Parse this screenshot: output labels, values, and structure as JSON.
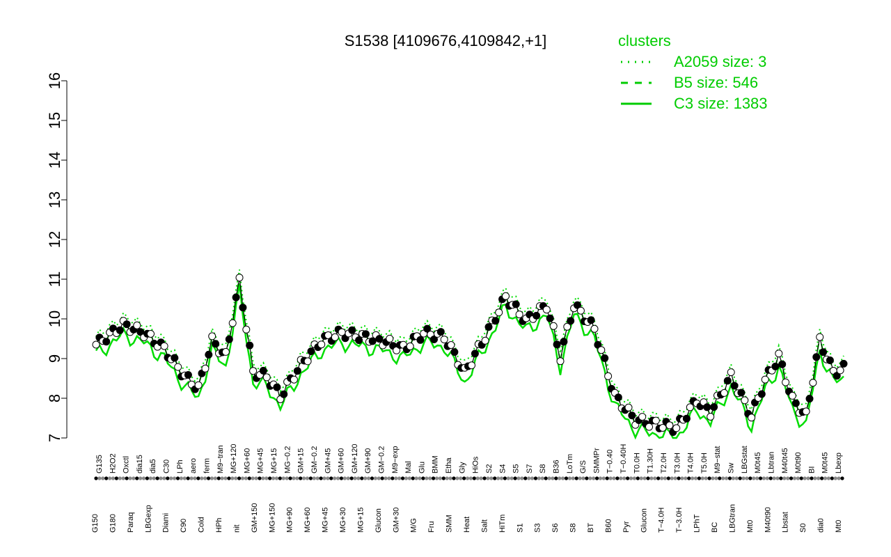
{
  "chart_data": {
    "type": "line",
    "title": "S1538 [4109676,4109842,+1]",
    "ylim": [
      7,
      16
    ],
    "y_ticks": [
      7,
      8,
      9,
      10,
      11,
      12,
      13,
      14,
      15,
      16
    ],
    "grid": false,
    "legend_position": "top-right",
    "legend": {
      "title": "clusters",
      "entries": [
        {
          "label": "A2059 size: 3",
          "style": "dotted"
        },
        {
          "label": "B5 size: 546",
          "style": "dashed"
        },
        {
          "label": "C3 size: 1383",
          "style": "solid"
        }
      ]
    },
    "colors": {
      "line": "#00dd00",
      "points": "#000000",
      "legend": "#00cc00"
    },
    "categories_upper": [
      "G135",
      "H2O2",
      "Oxctl",
      "dia15",
      "dia5",
      "C30",
      "LPh",
      "aero",
      "ferm",
      "M9−tran",
      "MG+120",
      "MG+60",
      "MG+45",
      "MG+15",
      "MG−0.2",
      "GM+15",
      "GM−0.2",
      "GM+45",
      "GM+60",
      "GM+120",
      "GM+90",
      "GM−0.2",
      "M9−exp",
      "Mal",
      "Glu",
      "BMM",
      "Etha",
      "Gly",
      "HiOs",
      "S2",
      "S4",
      "S5",
      "S7",
      "S8",
      "B36",
      "LoTm",
      "G/S",
      "SMMPr",
      "T−0.40",
      "T−0.40H",
      "T0.0H",
      "T1.30H",
      "T2.0H",
      "T3.0H",
      "T4.0H",
      "T5.0H",
      "M9−stat",
      "Sw",
      "LBGstat",
      "M0t45",
      "Lbtran",
      "M40t45",
      "M0t90",
      "BI",
      "M0t45",
      "Lbexp"
    ],
    "categories_lower": [
      "G150",
      "G180",
      "Paraq",
      "LBGexp",
      "Diami",
      "C90",
      "Cold",
      "HPh",
      "nit",
      "GM+150",
      "MG+150",
      "MG+90",
      "MG+60",
      "MG+45",
      "MG+30",
      "MG+15",
      "Glucon",
      "GM+30",
      "M/G",
      "Fru",
      "SMM",
      "Heat",
      "Salt",
      "HiTm",
      "S1",
      "S3",
      "S6",
      "S8",
      "BT",
      "B60",
      "Pyr",
      "Glucon",
      "T−4.0H",
      "T−3.0H",
      "LPhT",
      "BC",
      "LBGtran",
      "Mt0",
      "M40t90",
      "Lbstat",
      "S0",
      "dia0",
      "Mt0"
    ],
    "x": [
      0,
      1,
      2,
      3,
      4,
      5,
      6,
      7,
      8,
      9,
      10,
      11,
      12,
      13,
      14,
      15,
      16,
      17,
      18,
      19,
      20,
      21,
      22,
      23,
      24,
      25,
      26,
      27,
      28,
      29,
      30,
      31,
      32,
      33,
      34,
      35,
      36,
      37,
      38,
      39,
      40,
      41,
      42,
      43,
      44,
      45,
      46,
      47,
      48,
      49,
      50,
      51,
      52,
      53,
      54,
      55,
      56,
      57,
      58,
      59,
      60,
      61,
      62,
      63,
      64,
      65,
      66,
      67,
      68,
      69,
      70,
      71,
      72,
      73,
      74,
      75,
      76,
      77,
      78,
      79,
      80,
      81,
      82,
      83,
      84,
      85,
      86,
      87,
      88,
      89,
      90,
      91,
      92,
      93,
      94,
      95,
      96,
      97,
      98,
      99,
      100,
      101,
      102,
      103,
      104,
      105,
      106,
      107,
      108,
      109,
      110,
      111,
      112,
      113,
      114,
      115,
      116,
      117,
      118,
      119,
      120,
      121,
      122,
      123,
      124,
      125,
      126,
      127,
      128,
      129,
      130,
      131,
      132,
      133,
      134,
      135,
      136,
      137,
      138,
      139,
      140,
      141,
      142,
      143,
      144,
      145,
      146,
      147,
      148,
      149,
      150,
      151,
      152,
      153,
      154,
      155,
      156,
      157,
      158,
      159,
      160,
      161,
      162,
      163,
      164,
      165,
      166,
      167,
      168,
      169,
      170,
      171,
      172,
      173,
      174,
      175,
      176,
      177,
      178,
      179,
      180,
      181,
      182,
      183,
      184,
      185,
      186,
      187,
      188,
      189,
      190,
      191,
      192,
      193,
      194,
      195,
      196,
      197,
      198,
      199,
      200,
      201,
      202,
      203,
      204,
      205,
      206,
      207,
      208,
      209,
      210,
      211,
      212,
      213,
      214,
      215,
      216,
      217,
      218,
      219,
      220,
      221,
      222,
      223,
      224,
      225,
      226,
      227,
      228,
      229,
      230,
      231,
      232,
      233,
      234,
      235,
      236,
      237,
      238,
      239,
      240,
      241,
      242,
      243,
      244,
      245,
      246,
      247,
      248,
      249,
      250,
      251,
      252,
      253,
      254,
      255,
      256,
      257,
      258,
      259,
      260,
      261,
      262,
      263,
      264,
      265,
      266,
      267,
      268,
      269,
      270,
      271,
      272,
      273,
      274,
      275,
      276,
      277,
      278,
      279,
      280,
      281,
      282,
      283,
      284,
      285,
      286,
      287,
      288,
      289,
      290,
      291,
      292,
      293,
      294,
      295,
      296,
      297,
      298,
      299,
      300,
      301,
      302,
      303,
      304,
      305,
      306,
      307,
      308,
      309,
      310,
      311,
      312,
      313,
      314,
      315,
      316,
      317,
      318,
      319,
      320,
      321,
      322,
      323,
      324,
      325,
      326,
      327,
      328,
      329,
      330,
      331,
      332,
      333,
      334,
      335,
      336,
      337,
      338,
      339,
      340,
      341,
      342,
      343,
      344,
      345,
      346,
      347,
      348,
      349,
      350,
      351,
      352,
      353,
      354,
      355,
      356,
      357,
      358,
      359,
      360,
      361,
      362,
      363,
      364,
      365,
      366,
      367,
      368,
      369,
      370,
      371,
      372,
      373,
      374,
      375,
      376,
      377,
      378,
      379,
      380,
      381,
      382,
      383,
      384,
      385,
      386,
      387,
      388,
      389,
      390,
      391,
      392,
      393,
      394,
      395,
      396,
      397,
      398,
      399,
      400,
      401,
      402,
      403,
      404,
      405,
      406,
      407,
      408,
      409,
      410,
      411,
      412,
      413,
      414,
      415,
      416,
      417,
      418,
      419,
      420,
      421,
      422,
      423,
      424,
      425,
      426,
      427,
      428,
      429,
      430,
      431,
      432,
      433,
      434,
      435,
      436,
      437,
      438,
      439,
      440,
      441,
      442,
      443,
      444,
      445,
      446,
      447,
      448,
      449,
      450,
      451,
      452,
      453,
      454,
      455,
      456,
      457,
      458,
      459,
      460,
      461,
      462,
      463,
      464,
      465,
      466,
      467,
      468,
      469,
      470,
      471,
      472,
      473,
      474,
      475,
      476,
      477,
      478,
      479,
      480,
      481,
      482,
      483,
      484,
      485,
      486,
      487,
      488,
      489,
      490,
      491,
      492,
      493,
      494,
      495,
      496,
      497,
      498,
      499,
      500,
      501,
      502,
      503,
      504,
      505,
      506,
      507,
      508,
      509,
      510,
      511,
      512,
      513,
      514,
      515,
      516,
      517,
      518,
      519,
      520,
      521,
      522,
      523,
      524,
      525,
      526,
      527,
      528,
      529,
      530,
      531,
      532,
      533,
      534,
      535,
      536,
      537,
      538,
      539,
      540,
      541,
      542,
      543,
      544,
      545,
      546,
      547,
      548,
      549,
      550,
      551,
      552,
      553,
      554,
      555,
      556,
      557,
      558,
      559,
      560,
      561,
      562,
      563,
      564,
      565,
      566,
      567,
      568,
      569,
      570,
      571,
      572,
      573,
      574,
      575,
      576,
      577,
      578,
      579,
      580,
      581,
      582,
      583,
      584,
      585,
      586,
      587,
      588,
      589,
      590,
      591,
      592,
      593,
      594,
      595,
      596,
      597,
      598,
      599,
      600,
      601,
      602,
      603,
      604,
      605,
      606,
      607,
      608,
      609,
      610,
      611,
      612,
      613,
      614,
      615,
      616,
      617,
      618,
      619,
      620,
      621,
      622,
      623,
      624,
      625,
      626,
      627,
      628,
      629,
      630,
      631,
      632,
      633,
      634,
      635,
      636,
      637,
      638,
      639,
      640,
      641,
      642,
      643,
      644,
      645,
      646,
      647,
      648,
      649,
      650,
      651,
      652,
      653,
      654,
      655,
      656,
      657,
      658,
      659,
      660,
      661,
      662,
      663,
      664,
      665,
      666,
      667,
      668,
      669,
      670,
      671,
      672,
      673,
      674,
      675,
      676,
      677,
      678,
      679,
      680,
      681,
      682,
      683,
      684,
      685,
      686,
      687,
      688,
      689,
      690,
      691,
      692,
      693,
      694,
      695,
      696,
      697,
      698,
      699,
      700,
      701,
      702,
      703,
      704,
      705,
      706,
      707,
      708,
      709,
      710,
      711,
      712,
      713,
      714,
      715,
      716,
      717,
      718,
      719,
      720,
      721,
      722,
      723,
      724,
      725,
      726,
      727,
      728,
      729,
      730,
      731,
      732,
      733,
      734,
      735,
      736,
      737,
      738,
      739,
      740,
      741,
      742,
      743,
      744,
      745,
      746,
      747,
      748,
      749,
      750,
      751,
      752,
      753,
      754,
      755,
      756,
      757,
      758,
      759,
      760,
      761,
      762,
      763,
      764,
      765,
      766,
      767,
      768,
      769,
      770,
      771,
      772,
      773,
      774,
      775,
      776,
      777,
      778,
      779,
      780,
      781,
      782,
      783,
      784,
      785,
      786,
      787,
      788,
      789,
      790,
      791,
      792,
      793,
      794,
      795,
      796,
      797,
      798,
      799,
      800,
      801,
      802,
      803,
      804,
      805,
      806,
      807,
      808,
      809,
      810,
      811,
      812,
      813,
      814,
      815,
      816,
      817,
      818,
      819,
      820,
      821,
      822,
      823,
      824,
      825,
      826,
      827,
      828,
      829,
      830,
      831,
      832,
      833,
      834,
      835,
      836,
      837,
      838,
      839,
      840,
      841,
      842,
      843,
      844,
      845,
      846,
      847,
      848,
      849,
      850,
      851,
      852,
      853,
      854,
      855,
      856,
      857,
      858,
      859,
      860,
      861,
      862,
      863,
      864,
      865,
      866,
      867,
      868,
      869,
      870,
      871,
      872,
      873,
      874,
      875,
      876,
      877,
      878,
      879,
      880,
      881,
      882,
      883,
      884,
      885,
      886,
      887,
      888,
      889,
      890,
      891,
      892,
      893,
      894,
      895,
      896,
      897,
      898,
      899,
      900,
      901,
      902,
      903,
      904,
      905,
      906,
      907,
      908,
      909,
      910,
      911,
      912,
      913,
      914,
      915,
      916,
      917,
      918,
      919,
      920,
      921,
      922,
      923,
      924,
      925,
      926,
      927,
      928,
      929,
      930,
      931,
      932,
      933,
      934,
      935,
      936,
      937,
      938,
      939,
      940,
      941,
      942,
      943,
      944,
      945,
      946,
      947,
      948,
      949,
      950,
      951,
      952,
      953,
      954,
      955,
      956,
      957,
      958,
      959,
      960,
      961,
      962,
      963,
      964,
      965,
      966,
      967,
      968,
      969,
      970,
      971,
      972,
      973,
      974,
      975,
      976,
      977,
      978,
      979,
      980,
      981,
      982,
      983,
      984,
      985,
      986,
      987,
      988,
      989,
      990,
      991,
      992,
      993,
      994,
      995,
      996,
      997,
      998,
      999,
      1000,
      1001,
      1002,
      1003,
      1004,
      1005,
      1006,
      1007,
      1008,
      1009,
      1010,
      1011,
      1012,
      1013,
      1014,
      1015,
      1016,
      1017,
      1018,
      1019,
      1020,
      1021,
      1022,
      1023,
      1024,
      1025,
      1026,
      1027,
      1028,
      1029,
      1030,
      1031,
      1032,
      1033,
      1034,
      1035,
      1036,
      1037,
      1038,
      1039,
      1040,
      1041,
      1042,
      1043,
      1044,
      1045,
      1046,
      1047,
      1048,
      1049,
      1050,
      1051,
      1052,
      1053,
      1054,
      1055,
      1056,
      1057,
      1058,
      1059,
      1060,
      1061,
      1062,
      1063,
      1064,
      1065,
      1066,
      1067,
      1068,
      1069,
      1070,
      1071,
      1072,
      1073,
      1074,
      1075,
      1076,
      1077,
      1078,
      1079,
      1080,
      1081,
      1082,
      1083,
      1084,
      1085,
      1086,
      1087,
      1088,
      1089,
      1090,
      1091,
      1092,
      1093,
      1094,
      1095,
      1096,
      1097,
      1098,
      1099,
      1100,
      1101,
      1102,
      1103,
      1104,
      1105,
      1106,
      1107,
      1108,
      1109,
      1110,
      1111,
      1112,
      1113,
      1114,
      1115,
      1116,
      1117,
      1118,
      1119,
      1120,
      1121,
      1122,
      1123,
      1124,
      1125,
      1126,
      1127,
      1128,
      1129,
      1130,
      1131,
      1132,
      1133,
      1134,
      1135,
      1136,
      1137,
      1138,
      1139,
      1140,
      1141,
      1142,
      1143,
      1144,
      1145,
      1146,
      1147,
      1148,
      1149,
      1150,
      1151,
      1152,
      1153,
      1154,
      1155,
      1156,
      1157,
      1158,
      1159,
      1160,
      1161,
      1162,
      1163,
      1164,
      1165,
      1166,
      1167,
      1168,
      1169,
      1170,
      1171,
      1172,
      1173,
      1174,
      1175,
      1176,
      1177,
      1178,
      1179,
      1180,
      1181,
      1182,
      1183,
      1184,
      1185,
      1186,
      1187,
      1188,
      1189,
      1190,
      1191,
      1192,
      1193,
      1194,
      1195,
      1196,
      1197,
      1198,
      1199,
      1200,
      1201,
      1202,
      1203,
      1204,
      1205,
      1206,
      1207,
      1208,
      1209,
      1210,
      1211,
      1212,
      1213,
      1214,
      1215,
      1216,
      1217,
      1218,
      1219,
      1220,
      1221,
      1222,
      1223,
      1224,
      1225,
      1226,
      1227,
      1228,
      1229,
      1230,
      1231,
      1232,
      1233,
      1234,
      1235,
      1236,
      1237,
      1238,
      1239,
      1240,
      1241,
      1242,
      1243,
      1244,
      1245,
      1246,
      1247,
      1248,
      1249,
      1250,
      1251,
      1252,
      1253,
      1254,
      1255,
      1256,
      1257,
      1258,
      1259,
      1260,
      1261,
      1262,
      1263,
      1264,
      1265,
      1266,
      1267,
      1268,
      1269,
      1270,
      1271,
      1272,
      1273,
      1274,
      1275,
      1276,
      1277,
      1278,
      1279
    ]
  }
}
